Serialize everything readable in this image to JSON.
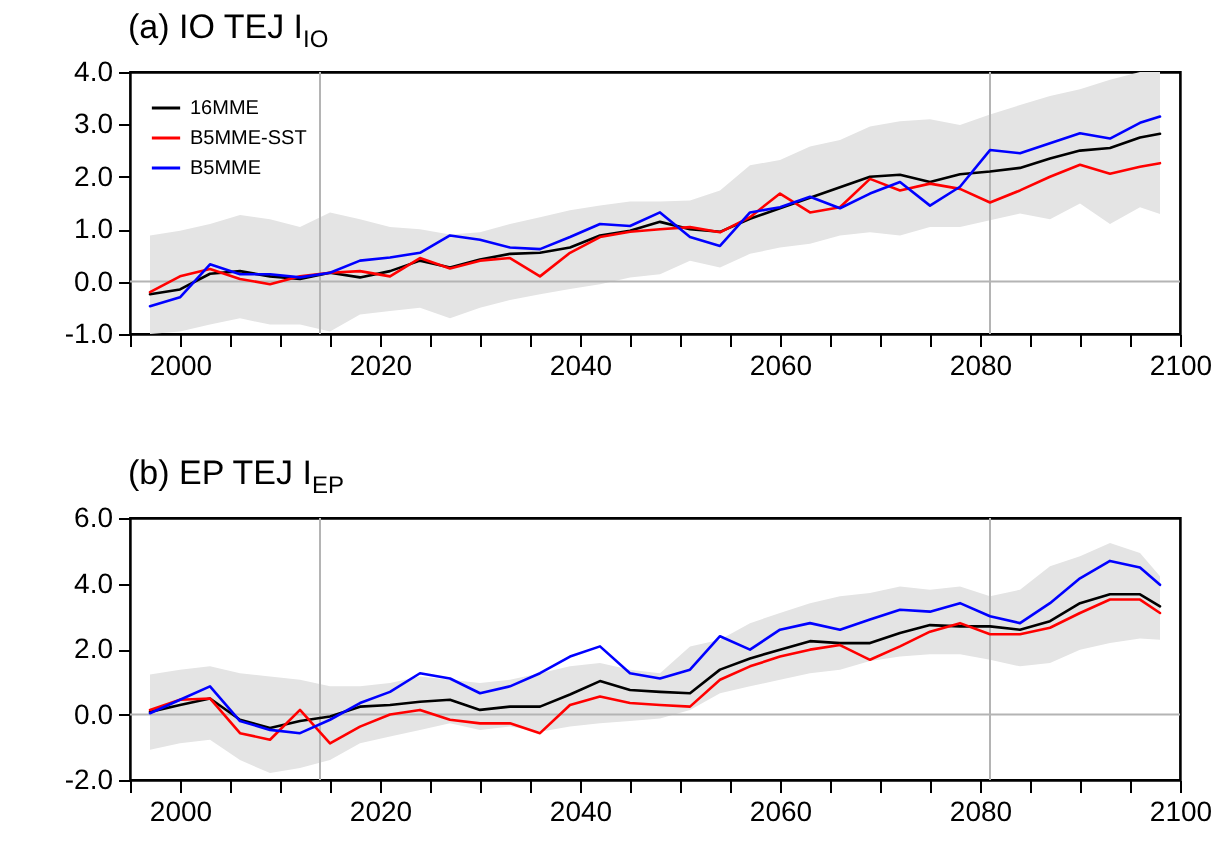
{
  "chart_data": [
    {
      "type": "line",
      "title": "(a) IO TEJ I$_{IO}$",
      "x": [
        1997,
        2000,
        2003,
        2006,
        2009,
        2012,
        2015,
        2018,
        2021,
        2024,
        2027,
        2030,
        2033,
        2036,
        2039,
        2042,
        2045,
        2048,
        2051,
        2054,
        2057,
        2060,
        2063,
        2066,
        2069,
        2072,
        2075,
        2078,
        2081,
        2084,
        2087,
        2090,
        2093,
        2096,
        2098
      ],
      "series": [
        {
          "name": "16MME",
          "color": "#000000",
          "values": [
            -0.24,
            -0.15,
            0.15,
            0.2,
            0.1,
            0.05,
            0.17,
            0.08,
            0.2,
            0.4,
            0.27,
            0.42,
            0.53,
            0.55,
            0.65,
            0.88,
            0.97,
            1.14,
            1.0,
            0.95,
            1.2,
            1.4,
            1.6,
            1.8,
            2.0,
            2.04,
            1.9,
            2.05,
            2.1,
            2.17,
            2.35,
            2.5,
            2.55,
            2.75,
            2.82
          ],
          "lower": [
            -1.0,
            -0.95,
            -0.82,
            -0.7,
            -0.82,
            -0.82,
            -0.95,
            -0.63,
            -0.56,
            -0.5,
            -0.7,
            -0.5,
            -0.35,
            -0.24,
            -0.14,
            -0.05,
            0.08,
            0.14,
            0.4,
            0.27,
            0.53,
            0.65,
            0.72,
            0.88,
            0.94,
            0.88,
            1.04,
            1.04,
            1.17,
            1.3,
            1.19,
            1.49,
            1.1,
            1.42,
            1.29
          ],
          "upper": [
            0.88,
            0.97,
            1.1,
            1.27,
            1.19,
            1.04,
            1.32,
            1.19,
            1.04,
            1.0,
            0.9,
            0.94,
            1.1,
            1.23,
            1.36,
            1.45,
            1.53,
            1.53,
            1.55,
            1.74,
            2.22,
            2.32,
            2.58,
            2.7,
            2.96,
            3.06,
            3.1,
            2.99,
            3.19,
            3.37,
            3.54,
            3.67,
            3.85,
            4.0,
            4.0
          ]
        },
        {
          "name": "B5MME-SST",
          "color": "#ff0000",
          "values": [
            -0.2,
            0.1,
            0.24,
            0.05,
            -0.05,
            0.1,
            0.17,
            0.2,
            0.1,
            0.45,
            0.25,
            0.4,
            0.45,
            0.1,
            0.55,
            0.85,
            0.95,
            1.0,
            1.04,
            0.94,
            1.23,
            1.68,
            1.32,
            1.42,
            1.96,
            1.74,
            1.87,
            1.77,
            1.51,
            1.74,
            2.0,
            2.23,
            2.06,
            2.19,
            2.26
          ]
        },
        {
          "name": "B5MME",
          "color": "#0000ff",
          "values": [
            -0.47,
            -0.3,
            0.33,
            0.14,
            0.14,
            0.08,
            0.17,
            0.4,
            0.46,
            0.55,
            0.88,
            0.8,
            0.65,
            0.62,
            0.85,
            1.1,
            1.06,
            1.32,
            0.85,
            0.68,
            1.32,
            1.42,
            1.62,
            1.4,
            1.68,
            1.9,
            1.45,
            1.81,
            2.51,
            2.45,
            2.64,
            2.83,
            2.73,
            3.03,
            3.15
          ]
        }
      ],
      "xlim": [
        1995,
        2100
      ],
      "xticks": [
        {
          "value": 1995,
          "label": null
        },
        2000,
        {
          "value": 2005,
          "label": null
        },
        {
          "value": 2010,
          "label": null
        },
        {
          "value": 2015,
          "label": null
        },
        2020,
        {
          "value": 2025,
          "label": null
        },
        {
          "value": 2030,
          "label": null
        },
        {
          "value": 2035,
          "label": null
        },
        2040,
        {
          "value": 2045,
          "label": null
        },
        {
          "value": 2050,
          "label": null
        },
        {
          "value": 2055,
          "label": null
        },
        2060,
        {
          "value": 2065,
          "label": null
        },
        {
          "value": 2070,
          "label": null
        },
        {
          "value": 2075,
          "label": null
        },
        2080,
        {
          "value": 2085,
          "label": null
        },
        {
          "value": 2090,
          "label": null
        },
        {
          "value": 2095,
          "label": null
        },
        2100
      ],
      "ylim": [
        -1,
        4
      ],
      "yticks": [
        {
          "value": -1,
          "label": "-1.0"
        },
        {
          "value": 0,
          "label": "0.0"
        },
        {
          "value": 1,
          "label": "1.0"
        },
        {
          "value": 2,
          "label": "2.0"
        },
        {
          "value": 3,
          "label": "3.0"
        },
        {
          "value": 4,
          "label": "4.0"
        }
      ],
      "ref_lines": [
        {
          "axis": "x",
          "value": 2014,
          "color": "#b4b4b4"
        },
        {
          "axis": "x",
          "value": 2081,
          "color": "#b4b4b4"
        },
        {
          "axis": "y",
          "value": 0,
          "color": "#b4b4b4"
        }
      ],
      "grid": false,
      "legend": "top left"
    },
    {
      "type": "line",
      "title": "(b) EP TEJ I$_{EP}$",
      "x": [
        1997,
        2000,
        2003,
        2006,
        2009,
        2012,
        2015,
        2018,
        2021,
        2024,
        2027,
        2030,
        2033,
        2036,
        2039,
        2042,
        2045,
        2048,
        2051,
        2054,
        2057,
        2060,
        2063,
        2066,
        2069,
        2072,
        2075,
        2078,
        2081,
        2084,
        2087,
        2090,
        2093,
        2096,
        2098
      ],
      "series": [
        {
          "color": "#000000",
          "values": [
            0.08,
            0.29,
            0.49,
            -0.16,
            -0.41,
            -0.2,
            -0.06,
            0.24,
            0.29,
            0.39,
            0.45,
            0.14,
            0.24,
            0.24,
            0.61,
            1.02,
            0.75,
            0.69,
            0.65,
            1.37,
            1.71,
            1.98,
            2.24,
            2.18,
            2.18,
            2.49,
            2.73,
            2.69,
            2.69,
            2.59,
            2.85,
            3.4,
            3.67,
            3.67,
            3.3
          ],
          "lower": [
            -1.08,
            -0.88,
            -0.77,
            -1.39,
            -1.79,
            -1.63,
            -1.39,
            -0.88,
            -0.67,
            -0.47,
            -0.27,
            -0.47,
            -0.37,
            -0.53,
            -0.37,
            -0.27,
            -0.2,
            -0.12,
            0.14,
            0.65,
            0.86,
            1.06,
            1.26,
            1.37,
            1.63,
            1.77,
            1.84,
            1.84,
            1.67,
            1.47,
            1.57,
            1.98,
            2.18,
            2.32,
            2.28
          ],
          "upper": [
            1.22,
            1.37,
            1.47,
            1.26,
            1.16,
            1.06,
            0.86,
            0.86,
            0.96,
            1.16,
            1.06,
            0.96,
            1.06,
            1.26,
            1.47,
            1.57,
            1.37,
            1.26,
            2.08,
            2.28,
            2.79,
            3.1,
            3.4,
            3.61,
            3.71,
            3.91,
            3.81,
            3.91,
            3.61,
            3.81,
            4.53,
            4.83,
            5.24,
            4.93,
            4.22
          ]
        },
        {
          "color": "#ff0000",
          "values": [
            0.14,
            0.45,
            0.49,
            -0.57,
            -0.77,
            0.14,
            -0.88,
            -0.37,
            0,
            0.14,
            -0.16,
            -0.27,
            -0.27,
            -0.57,
            0.29,
            0.55,
            0.35,
            0.29,
            0.24,
            1.06,
            1.47,
            1.77,
            1.98,
            2.12,
            1.67,
            2.08,
            2.53,
            2.79,
            2.45,
            2.45,
            2.65,
            3.1,
            3.51,
            3.51,
            3.1
          ]
        },
        {
          "color": "#0000ff",
          "values": [
            0.04,
            0.45,
            0.86,
            -0.2,
            -0.47,
            -0.57,
            -0.16,
            0.35,
            0.69,
            1.26,
            1.1,
            0.65,
            0.86,
            1.26,
            1.77,
            2.08,
            1.26,
            1.1,
            1.37,
            2.39,
            1.98,
            2.59,
            2.79,
            2.59,
            2.9,
            3.2,
            3.14,
            3.4,
            3.0,
            2.79,
            3.4,
            4.16,
            4.69,
            4.49,
            3.96
          ]
        }
      ],
      "xlim": [
        1995,
        2100
      ],
      "xticks": [
        {
          "value": 1995,
          "label": null
        },
        2000,
        {
          "value": 2005,
          "label": null
        },
        {
          "value": 2010,
          "label": null
        },
        {
          "value": 2015,
          "label": null
        },
        2020,
        {
          "value": 2025,
          "label": null
        },
        {
          "value": 2030,
          "label": null
        },
        {
          "value": 2035,
          "label": null
        },
        2040,
        {
          "value": 2045,
          "label": null
        },
        {
          "value": 2050,
          "label": null
        },
        {
          "value": 2055,
          "label": null
        },
        2060,
        {
          "value": 2065,
          "label": null
        },
        {
          "value": 2070,
          "label": null
        },
        {
          "value": 2075,
          "label": null
        },
        2080,
        {
          "value": 2085,
          "label": null
        },
        {
          "value": 2090,
          "label": null
        },
        {
          "value": 2095,
          "label": null
        },
        2100
      ],
      "ylim": [
        -2,
        6
      ],
      "yticks": [
        {
          "value": -2,
          "label": "-2.0"
        },
        {
          "value": 0,
          "label": "0.0"
        },
        {
          "value": 2,
          "label": "2.0"
        },
        {
          "value": 4,
          "label": "4.0"
        },
        {
          "value": 6,
          "label": "6.0"
        }
      ],
      "ref_lines": [
        {
          "axis": "x",
          "value": 2014,
          "color": "#b4b4b4"
        },
        {
          "axis": "x",
          "value": 2081,
          "color": "#b4b4b4"
        },
        {
          "axis": "y",
          "value": 0,
          "color": "#b4b4b4"
        }
      ],
      "grid": false
    }
  ]
}
